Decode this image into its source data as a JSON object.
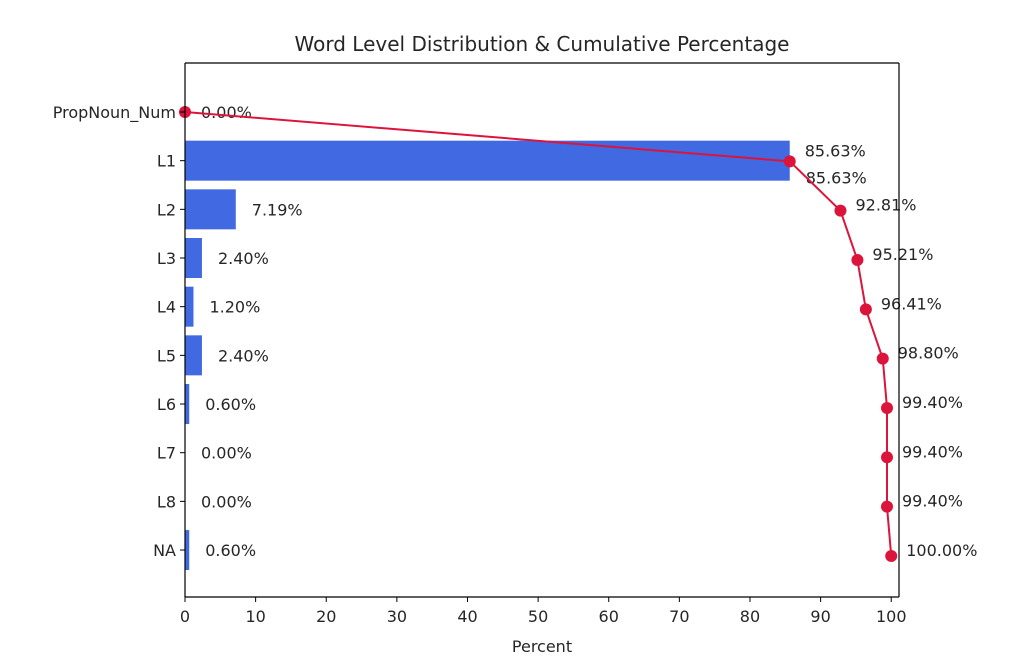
{
  "chart_data": {
    "type": "bar",
    "orientation": "horizontal",
    "title": "Word Level Distribution & Cumulative Percentage",
    "xlabel": "Percent",
    "ylabel": "",
    "xlim": [
      0,
      101.1
    ],
    "xticks": [
      "0",
      "10",
      "20",
      "30",
      "40",
      "50",
      "60",
      "70",
      "80",
      "90",
      "100"
    ],
    "categories": [
      "PropNoun_Num",
      "L1",
      "L2",
      "L3",
      "L4",
      "L5",
      "L6",
      "L7",
      "L8",
      "NA"
    ],
    "series": [
      {
        "name": "Percent",
        "type": "bar",
        "color": "#4169E1",
        "values": [
          0.0,
          85.63,
          7.19,
          2.4,
          1.2,
          2.4,
          0.6,
          0.0,
          0.0,
          0.6
        ],
        "labels": [
          "0.00%",
          "85.63%",
          "7.19%",
          "2.40%",
          "1.20%",
          "2.40%",
          "0.60%",
          "0.00%",
          "0.00%",
          "0.60%"
        ]
      },
      {
        "name": "Cumulative",
        "type": "line",
        "color": "#DC143C",
        "values": [
          0.0,
          85.63,
          92.81,
          95.21,
          96.41,
          98.8,
          99.4,
          99.4,
          99.4,
          100.0
        ],
        "labels": [
          "0.00%",
          "85.63%",
          "92.81%",
          "95.21%",
          "96.41%",
          "98.80%",
          "99.40%",
          "99.40%",
          "99.40%",
          "100.00%"
        ]
      }
    ],
    "grid": false,
    "legend": "none"
  }
}
